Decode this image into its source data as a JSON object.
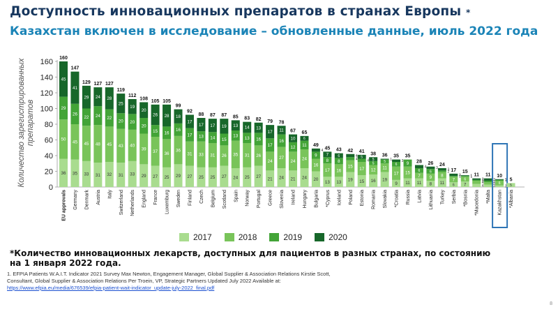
{
  "title": "Доступность инновационных препаратов в странах Европы",
  "title_mark": "*",
  "subtitle": "Казахстан включен в исследование – обновленные данные, июль 2022 года",
  "footnote": "*Количество инновационных лекарств, доступных для пациентов в разных странах, по состоянию на 1 января 2022 года.",
  "refs": {
    "line1": "1. EFPIA Patients W.A.I.T. Indicator 2021 Survey Max Newton, Engagement Manager, Global Supplier & Association Relations Kirstie Scott,",
    "line2": "Consultant, Global Supplier & Association Relations Per Troein, VP, Strategic Partners Updated July 2022 Available at:",
    "link": "https://www.efpia.eu/media/676539/efpia-patient-wait-indicator_update-july-2022_final.pdf"
  },
  "page_number": "8",
  "colors": {
    "y2017": "#a9dc8f",
    "y2018": "#79c45a",
    "y2019": "#43a437",
    "y2020": "#17672a",
    "highlight": "#2e75b6"
  },
  "chart_data": {
    "type": "bar",
    "stacked": true,
    "ylabel": "Количество зарегистрированных препаратов",
    "ylim": [
      0,
      160
    ],
    "yticks": [
      0,
      20,
      40,
      60,
      80,
      100,
      120,
      140,
      160
    ],
    "grid": false,
    "legend_position": "bottom",
    "highlight_category": "Kazakhstan",
    "categories": [
      "EU approvals",
      "Germany",
      "Denmark",
      "Austria",
      "Italy",
      "Switzerland",
      "Netherlands",
      "England",
      "France",
      "Luxemburg",
      "Sweden",
      "Finland",
      "Czech",
      "Belgium",
      "Scotland",
      "Spain",
      "Norway",
      "Portugal",
      "Greece",
      "Slovenia",
      "Ireland",
      "Hungary",
      "Bulgaria",
      "*Cyprus",
      "Iceland",
      "Poland",
      "Estonia",
      "Romania",
      "Slovakia",
      "*Croatia",
      "Russia",
      "Latvia",
      "Lithuania",
      "Turkey",
      "Serbia",
      "*Bosnia",
      "*Macedonia",
      "*Malta",
      "Kazakhstan",
      "*Albania"
    ],
    "totals": [
      160,
      147,
      129,
      127,
      127,
      119,
      112,
      108,
      105,
      105,
      99,
      92,
      88,
      87,
      87,
      85,
      83,
      82,
      79,
      78,
      67,
      65,
      49,
      45,
      43,
      42,
      41,
      38,
      36,
      35,
      35,
      28,
      26,
      24,
      17,
      15,
      11,
      11,
      10,
      5
    ],
    "series": [
      {
        "name": "2017",
        "values": [
          36,
          35,
          33,
          31,
          32,
          31,
          33,
          29,
          27,
          25,
          29,
          27,
          25,
          25,
          27,
          24,
          25,
          27,
          21,
          24,
          21,
          24,
          20,
          13,
          13,
          19,
          15,
          16,
          19,
          9,
          11,
          11,
          8,
          11,
          6,
          7,
          4,
          3,
          2,
          5
        ]
      },
      {
        "name": "2018",
        "values": [
          50,
          45,
          45,
          48,
          45,
          43,
          40,
          39,
          37,
          36,
          36,
          31,
          33,
          31,
          26,
          35,
          31,
          26,
          24,
          27,
          24,
          24,
          16,
          17,
          16,
          15,
          17,
          12,
          11,
          17,
          15,
          7,
          9,
          8,
          7,
          6,
          4,
          3,
          6,
          0
        ]
      },
      {
        "name": "2019",
        "values": [
          29,
          26,
          22,
          24,
          22,
          20,
          20,
          20,
          15,
          16,
          16,
          17,
          13,
          14,
          15,
          13,
          13,
          16,
          17,
          16,
          12,
          11,
          9,
          8,
          8,
          4,
          4,
          5,
          5,
          6,
          9,
          6,
          6,
          2,
          1,
          1,
          1,
          2,
          1,
          0
        ]
      },
      {
        "name": "2020",
        "values": [
          45,
          41,
          29,
          24,
          28,
          25,
          19,
          20,
          26,
          28,
          18,
          17,
          17,
          17,
          19,
          13,
          14,
          13,
          17,
          11,
          10,
          6,
          4,
          7,
          6,
          4,
          5,
          5,
          1,
          3,
          0,
          4,
          3,
          3,
          3,
          1,
          2,
          3,
          1,
          0
        ]
      }
    ]
  }
}
